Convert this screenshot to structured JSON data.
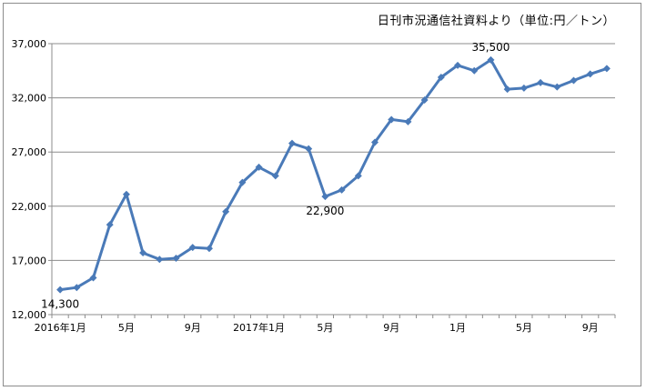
{
  "source_note": "日刊市況通信社資料より（単位:円／トン）",
  "chart_data": {
    "type": "line",
    "x": [
      "2016年1月",
      "2016-02",
      "2016-03",
      "2016-04",
      "5月",
      "2016-06",
      "2016-07",
      "2016-08",
      "9月",
      "2016-10",
      "2016-11",
      "2016-12",
      "2017年1月",
      "2017-02",
      "2017-03",
      "2017-04",
      "5月",
      "2017-06",
      "2017-07",
      "2017-08",
      "9月",
      "2017-10",
      "2017-11",
      "2017-12",
      "1月",
      "2018-02",
      "2018-03",
      "2018-04",
      "5月",
      "2018-06",
      "2018-07",
      "2018-08",
      "9月",
      "2018-10"
    ],
    "x_tick_labels": [
      "2016年1月",
      "",
      "",
      "",
      "5月",
      "",
      "",
      "",
      "9月",
      "",
      "",
      "",
      "2017年1月",
      "",
      "",
      "",
      "5月",
      "",
      "",
      "",
      "9月",
      "",
      "",
      "",
      "1月",
      "",
      "",
      "",
      "5月",
      "",
      "",
      "",
      "9月",
      ""
    ],
    "series": [
      {
        "values": [
          14300,
          14500,
          15400,
          20300,
          23100,
          17700,
          17100,
          17200,
          18200,
          18100,
          21500,
          24200,
          25600,
          24800,
          27800,
          27300,
          22900,
          23500,
          24800,
          27900,
          30000,
          29800,
          31800,
          33900,
          35000,
          34500,
          35500,
          32800,
          32900,
          33400,
          33000,
          33600,
          34200,
          34700
        ],
        "color": "#4a7ab8"
      }
    ],
    "ylim": [
      12000,
      37000
    ],
    "y_ticks": [
      12000,
      17000,
      22000,
      27000,
      32000,
      37000
    ],
    "y_tick_labels": [
      "12,000",
      "17,000",
      "22,000",
      "27,000",
      "32,000",
      "37,000"
    ],
    "grid": true,
    "annotations": [
      {
        "index": 0,
        "text": "14,300",
        "position": "below"
      },
      {
        "index": 16,
        "text": "22,900",
        "position": "below"
      },
      {
        "index": 26,
        "text": "35,500",
        "position": "above"
      }
    ]
  }
}
